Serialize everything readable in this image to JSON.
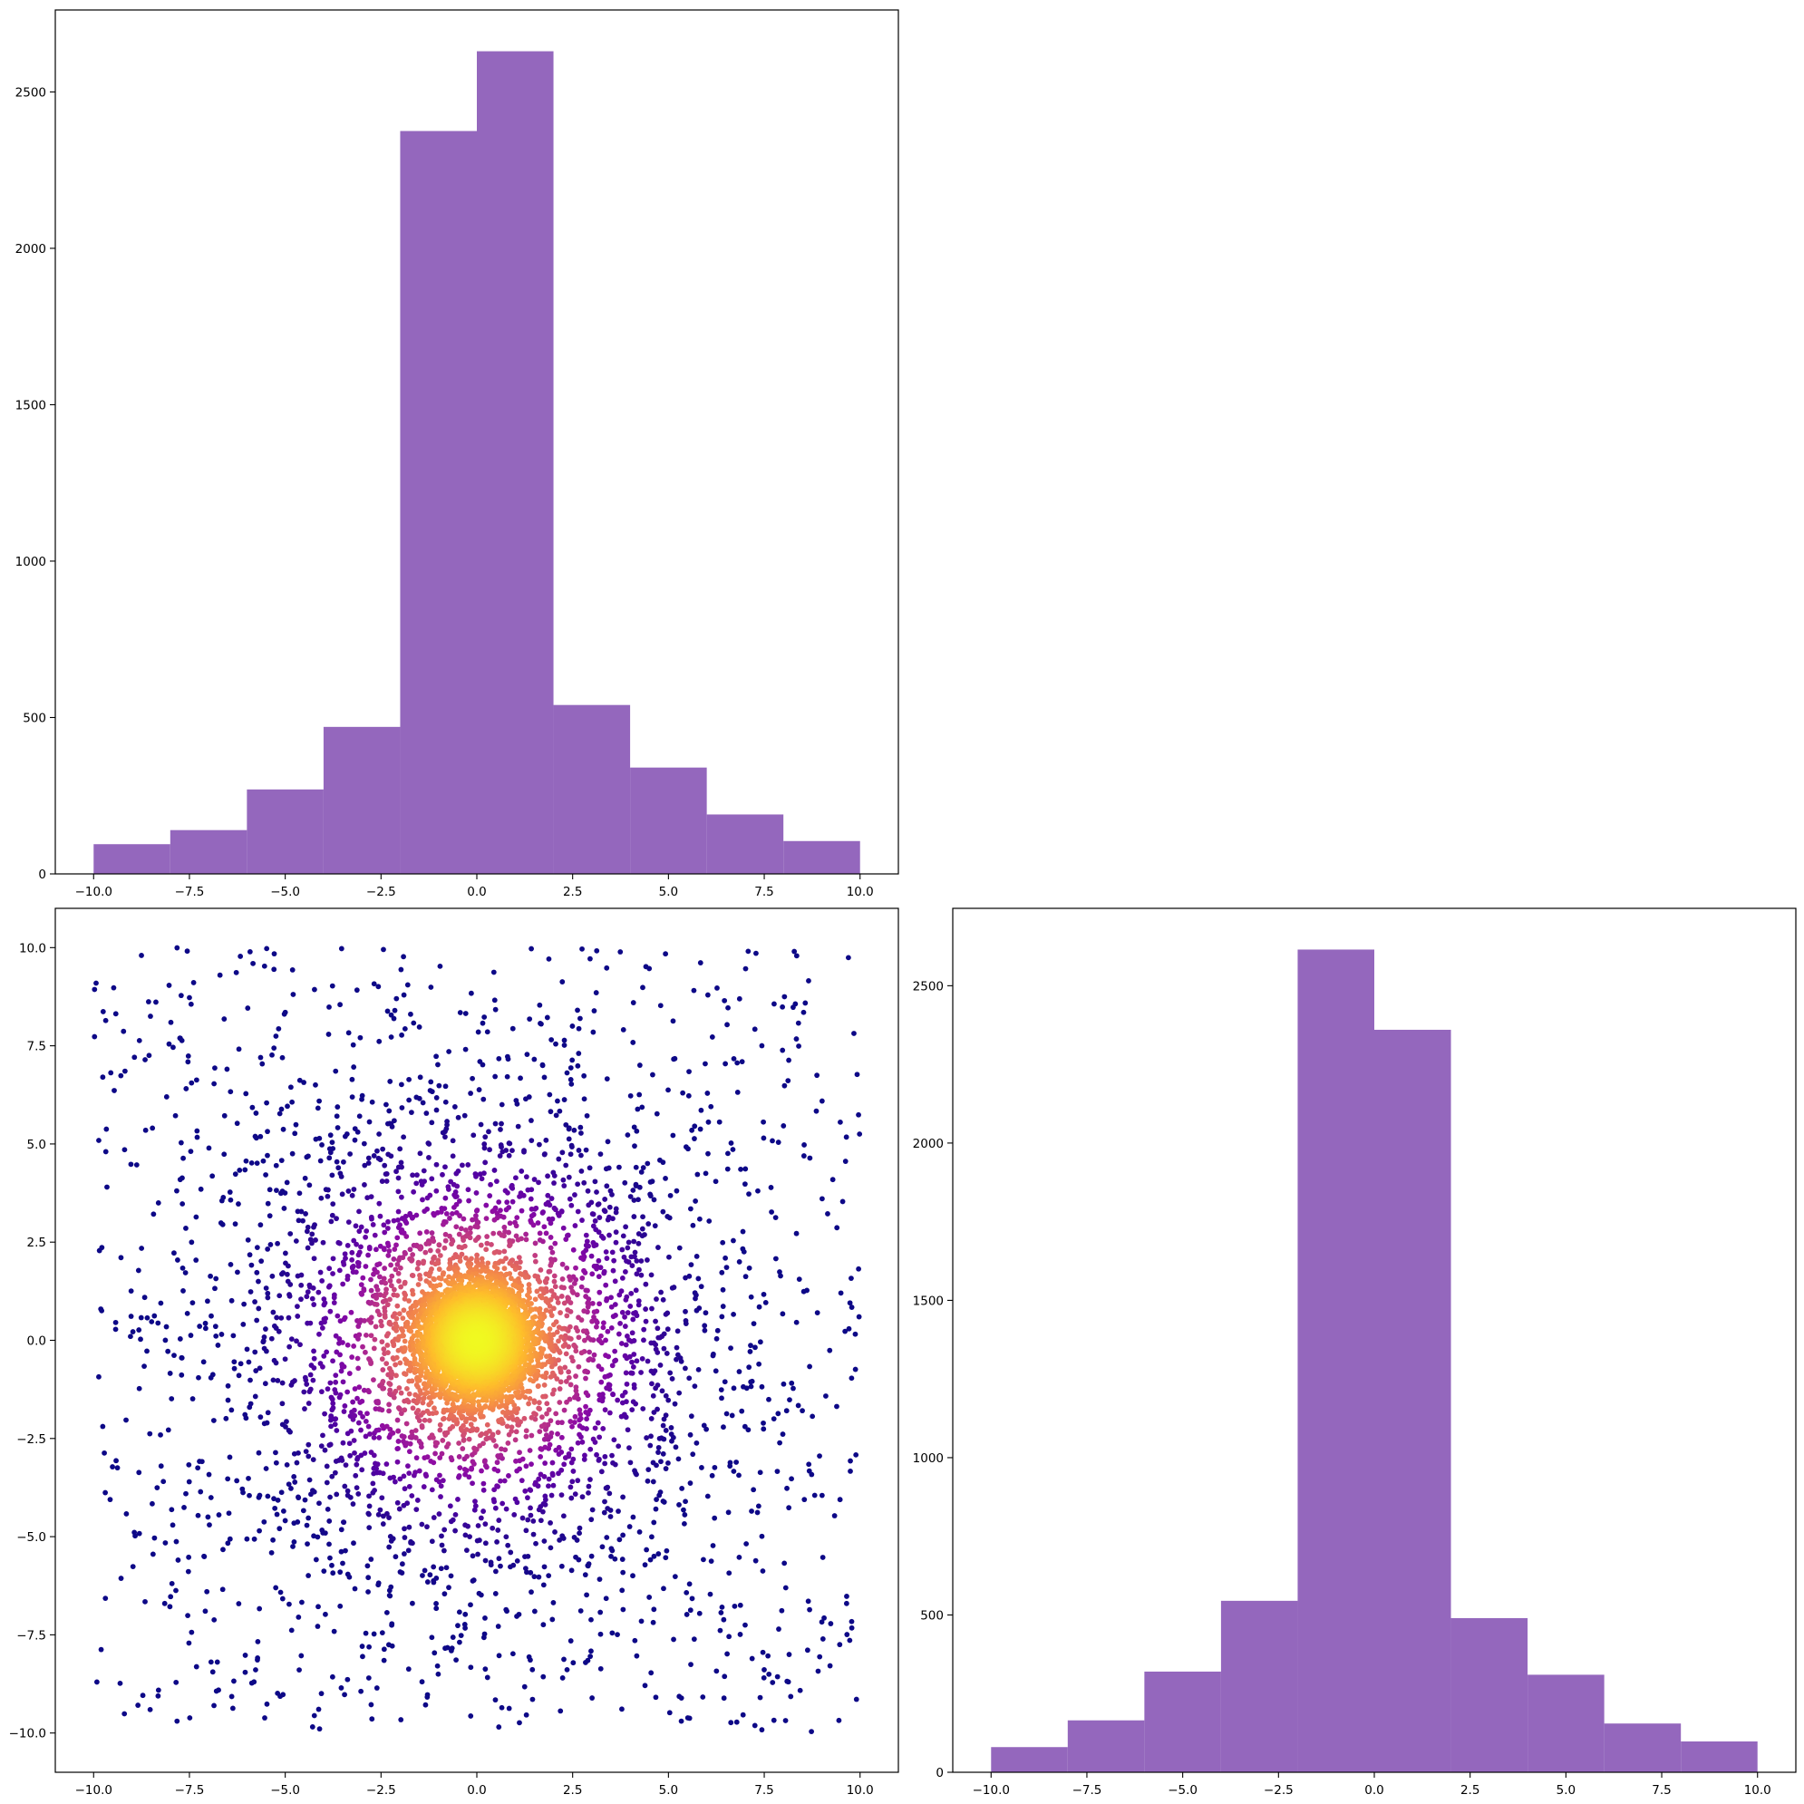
{
  "figure": {
    "layout": "corner plot",
    "background": "#ffffff"
  },
  "chart_data": [
    {
      "type": "bar",
      "subtype": "histogram",
      "panel": "top-left",
      "title": "",
      "xlabel": "",
      "ylabel": "",
      "color": "#9467bd",
      "bin_edges": [
        -10,
        -8,
        -6,
        -4,
        -2,
        0,
        2,
        4,
        6,
        8,
        10
      ],
      "values": [
        95,
        140,
        270,
        470,
        2375,
        2630,
        540,
        340,
        190,
        105
      ],
      "xlim": [
        -11.0,
        11.0
      ],
      "ylim": [
        0,
        2762
      ],
      "xticks": [
        -10.0,
        -7.5,
        -5.0,
        -2.5,
        0.0,
        2.5,
        5.0,
        7.5,
        10.0
      ],
      "xtick_labels": [
        "−10.0",
        "−7.5",
        "−5.0",
        "−2.5",
        "0.0",
        "2.5",
        "5.0",
        "7.5",
        "10.0"
      ],
      "yticks": [
        0,
        500,
        1000,
        1500,
        2000,
        2500
      ],
      "ytick_labels": [
        "0",
        "500",
        "1000",
        "1500",
        "2000",
        "2500"
      ],
      "grid": false
    },
    {
      "type": "scatter",
      "panel": "bottom-left",
      "title": "",
      "xlabel": "",
      "ylabel": "",
      "colormap": "plasma",
      "color_encoding": "point density (high at center)",
      "n_points": 8000,
      "x_range": [
        -10,
        10
      ],
      "y_range": [
        -10,
        10
      ],
      "center": [
        0,
        0
      ],
      "xlim": [
        -11.0,
        11.0
      ],
      "ylim": [
        -11.0,
        11.0
      ],
      "xticks": [
        -10.0,
        -7.5,
        -5.0,
        -2.5,
        0.0,
        2.5,
        5.0,
        7.5,
        10.0
      ],
      "xtick_labels": [
        "−10.0",
        "−7.5",
        "−5.0",
        "−2.5",
        "0.0",
        "2.5",
        "5.0",
        "7.5",
        "10.0"
      ],
      "yticks": [
        -10.0,
        -7.5,
        -5.0,
        -2.5,
        0.0,
        2.5,
        5.0,
        7.5,
        10.0
      ],
      "ytick_labels": [
        "−10.0",
        "−7.5",
        "−5.0",
        "−2.5",
        "0.0",
        "2.5",
        "5.0",
        "7.5",
        "10.0"
      ],
      "grid": false
    },
    {
      "type": "bar",
      "subtype": "histogram",
      "panel": "bottom-right",
      "title": "",
      "xlabel": "",
      "ylabel": "",
      "color": "#9467bd",
      "bin_edges": [
        -10,
        -8,
        -6,
        -4,
        -2,
        0,
        2,
        4,
        6,
        8,
        10
      ],
      "values": [
        80,
        165,
        320,
        545,
        2615,
        2360,
        490,
        310,
        155,
        98
      ],
      "xlim": [
        -11.0,
        11.0
      ],
      "ylim": [
        0,
        2746
      ],
      "xticks": [
        -10.0,
        -7.5,
        -5.0,
        -2.5,
        0.0,
        2.5,
        5.0,
        7.5,
        10.0
      ],
      "xtick_labels": [
        "−10.0",
        "−7.5",
        "−5.0",
        "−2.5",
        "0.0",
        "2.5",
        "5.0",
        "7.5",
        "10.0"
      ],
      "yticks": [
        0,
        500,
        1000,
        1500,
        2000,
        2500
      ],
      "ytick_labels": [
        "0",
        "500",
        "1000",
        "1500",
        "2000",
        "2500"
      ],
      "grid": false
    }
  ]
}
